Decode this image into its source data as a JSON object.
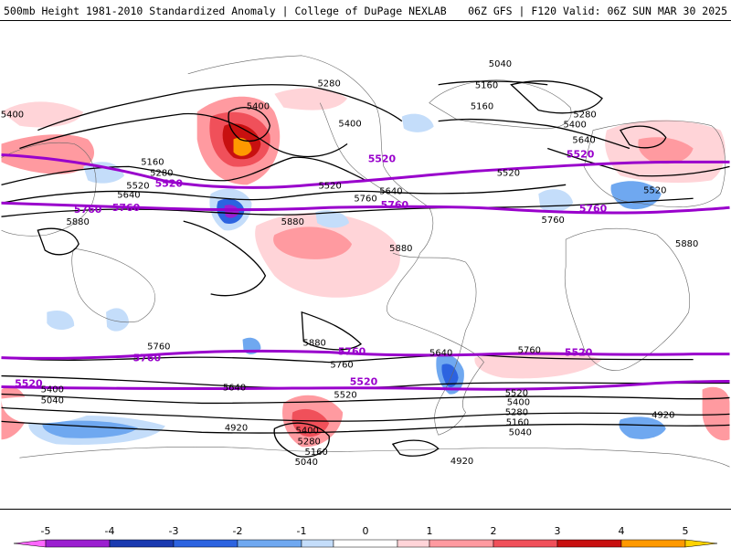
{
  "header": {
    "left_title": "500mb Height 1981-2010 Standardized Anomaly | College of DuPage NEXLAB",
    "right_title": "06Z GFS | F120 Valid: 06Z SUN MAR 30 2025"
  },
  "colors": {
    "purple_contour": "#9900cc",
    "black_contour": "#000000",
    "continent_outline": "#666666"
  },
  "colorbar": {
    "ticks": [
      "-5",
      "-4",
      "-3",
      "-2",
      "-1",
      "0",
      "1",
      "2",
      "3",
      "4",
      "5"
    ],
    "bins": [
      {
        "from": -5.5,
        "to": -5,
        "color": "#ff66ff"
      },
      {
        "from": -5,
        "to": -4,
        "color": "#9b1fd0"
      },
      {
        "from": -4,
        "to": -3,
        "color": "#1a3ab0"
      },
      {
        "from": -3,
        "to": -2,
        "color": "#2c63e0"
      },
      {
        "from": -2,
        "to": -1,
        "color": "#6fa8f0"
      },
      {
        "from": -1,
        "to": -0.5,
        "color": "#c4ddfa"
      },
      {
        "from": -0.5,
        "to": 0.5,
        "color": "#ffffff"
      },
      {
        "from": 0.5,
        "to": 1,
        "color": "#ffd4d8"
      },
      {
        "from": 1,
        "to": 2,
        "color": "#ff9aa0"
      },
      {
        "from": 2,
        "to": 3,
        "color": "#f0505a"
      },
      {
        "from": 3,
        "to": 4,
        "color": "#c81010"
      },
      {
        "from": 4,
        "to": 5,
        "color": "#ff9900"
      },
      {
        "from": 5,
        "to": 5.5,
        "color": "#ffd200"
      }
    ]
  },
  "contour_labels": [
    {
      "text": "5040"
    },
    {
      "text": "5280"
    },
    {
      "text": "5160"
    },
    {
      "text": "5400"
    },
    {
      "text": "5400"
    },
    {
      "text": "5400"
    },
    {
      "text": "5160"
    },
    {
      "text": "5280"
    },
    {
      "text": "5400"
    },
    {
      "text": "5640"
    },
    {
      "text": "5160"
    },
    {
      "text": "5280"
    },
    {
      "text": "5520"
    },
    {
      "text": "5640"
    },
    {
      "text": "5520"
    },
    {
      "text": "5640"
    },
    {
      "text": "5760"
    },
    {
      "text": "5520"
    },
    {
      "text": "5520"
    },
    {
      "text": "5760"
    },
    {
      "text": "5880"
    },
    {
      "text": "5880"
    },
    {
      "text": "5880"
    },
    {
      "text": "5880"
    },
    {
      "text": "5760"
    },
    {
      "text": "5880"
    },
    {
      "text": "5760"
    },
    {
      "text": "5640"
    },
    {
      "text": "5760"
    },
    {
      "text": "5640"
    },
    {
      "text": "5520"
    },
    {
      "text": "5400"
    },
    {
      "text": "5040"
    },
    {
      "text": "5520"
    },
    {
      "text": "5400"
    },
    {
      "text": "5280"
    },
    {
      "text": "5160"
    },
    {
      "text": "5040"
    },
    {
      "text": "4920"
    },
    {
      "text": "5400"
    },
    {
      "text": "5280"
    },
    {
      "text": "5160"
    },
    {
      "text": "5040"
    },
    {
      "text": "4920"
    },
    {
      "text": "4920"
    }
  ],
  "purple_labels": [
    {
      "text": "5520"
    },
    {
      "text": "5520"
    },
    {
      "text": "5520"
    },
    {
      "text": "5760"
    },
    {
      "text": "5760"
    },
    {
      "text": "5760"
    },
    {
      "text": "5760"
    },
    {
      "text": "5760"
    },
    {
      "text": "5760"
    },
    {
      "text": "5520"
    },
    {
      "text": "5520"
    },
    {
      "text": "5520"
    }
  ]
}
